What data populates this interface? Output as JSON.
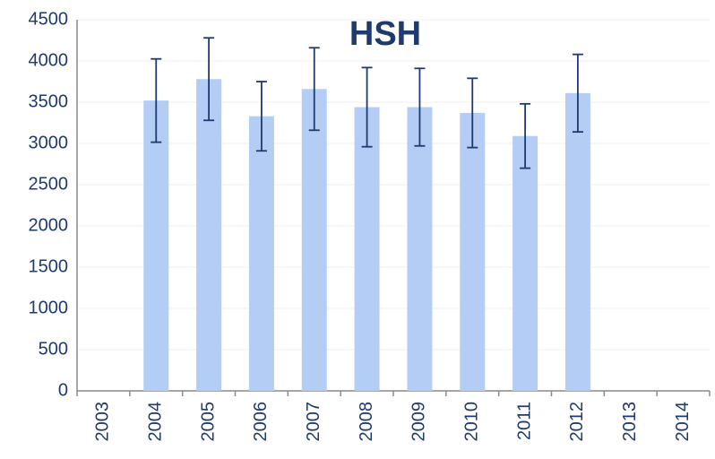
{
  "chart_data": {
    "type": "bar",
    "title": "HSH",
    "categories": [
      "2003",
      "2004",
      "2005",
      "2006",
      "2007",
      "2008",
      "2009",
      "2010",
      "2011",
      "2012",
      "2013",
      "2014"
    ],
    "values": [
      null,
      3520,
      3780,
      3330,
      3660,
      3440,
      3440,
      3370,
      3090,
      3610,
      null,
      null
    ],
    "errors": [
      null,
      505,
      500,
      420,
      500,
      480,
      470,
      420,
      390,
      470,
      null,
      null
    ],
    "color": "#b4cdf5",
    "error_color": "#1f3a6e",
    "ylim": [
      0,
      4500
    ],
    "yticks": [
      0,
      500,
      1000,
      1500,
      2000,
      2500,
      3000,
      3500,
      4000,
      4500
    ],
    "grid": true
  }
}
